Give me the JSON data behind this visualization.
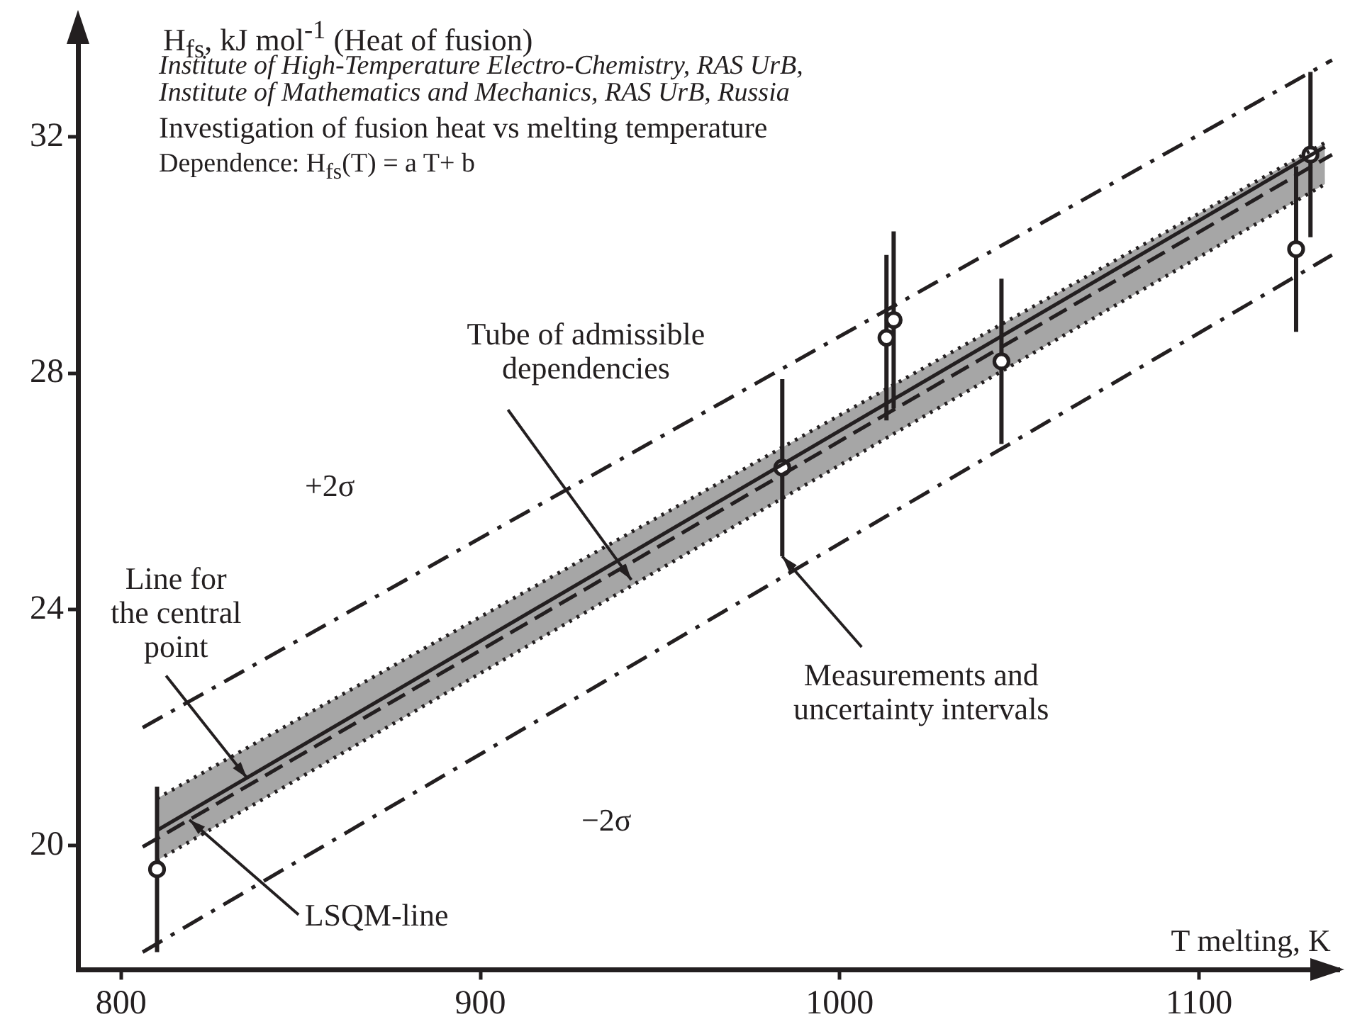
{
  "chart_data": {
    "type": "scatter",
    "title": "Investigation of fusion heat vs melting temperature",
    "subtitle": "Institute of High-Temperature Electro-Chemistry, RAS UrB,\nInstitute of Mathematics and Mechanics, RAS UrB, Russia",
    "ylabel": "H$_{fs}$, kJ mol$^{-1}$  (Heat of fusion)",
    "xlabel": "T melting, K",
    "xlim": [
      788,
      1139
    ],
    "xticks": [
      800,
      900,
      1000,
      1100
    ],
    "ylim": [
      17.9,
      33.9
    ],
    "yticks": [
      20,
      24,
      28,
      32
    ],
    "grid": false,
    "legend": false,
    "series": [
      {
        "type": "line",
        "color": "#231f20",
        "x": [
          810,
          1135
        ],
        "values": [
          20.26,
          31.83
        ],
        "lower": [
          19.75,
          31.2
        ],
        "upper": [
          20.8,
          31.9
        ],
        "line_style": "solid",
        "marker": "none"
      },
      {
        "type": "line",
        "color": "#231f20",
        "x": [
          806,
          1137
        ],
        "values": [
          19.98,
          31.7
        ],
        "line_style": "dashed",
        "marker": "none"
      },
      {
        "type": "line",
        "color": "#231f20",
        "x": [
          810,
          1135
        ],
        "values": [
          20.8,
          31.9
        ],
        "line_style": "dotted",
        "marker": "none"
      },
      {
        "type": "line",
        "color": "#231f20",
        "x": [
          810,
          1135
        ],
        "values": [
          19.75,
          31.2
        ],
        "line_style": "dotted",
        "marker": "none"
      },
      {
        "type": "line",
        "color": "#231f20",
        "x": [
          806,
          1137
        ],
        "values": [
          22.0,
          33.3
        ],
        "line_style": "dashdot",
        "marker": "none"
      },
      {
        "type": "line",
        "color": "#231f20",
        "x": [
          806,
          1137
        ],
        "values": [
          18.2,
          30.0
        ],
        "line_style": "dashdot",
        "marker": "none"
      },
      {
        "color": "#231f20",
        "x": [
          810,
          984,
          1013,
          1015,
          1045,
          1127,
          1131
        ],
        "values": [
          19.6,
          26.4,
          28.6,
          28.9,
          28.2,
          30.1,
          31.7
        ],
        "errors": [
          1.4,
          1.5,
          1.4,
          1.5,
          1.4,
          1.4,
          1.4
        ],
        "marker": "circle"
      }
    ],
    "annotations": [
      "Dependence:  H$_{fs}$(T) = a T+ b",
      {
        "text": "Tube of admissible dependencies",
        "x": 942,
        "y": 24.5
      },
      "+2σ",
      {
        "text": "Line for the central point",
        "x": 835,
        "y": 21.15
      },
      "−2σ",
      {
        "text": "LSQM-line",
        "x": 819,
        "y": 20.44
      },
      {
        "text": "Measurements and uncertainty intervals",
        "x": 984,
        "y": 24.9
      }
    ]
  }
}
